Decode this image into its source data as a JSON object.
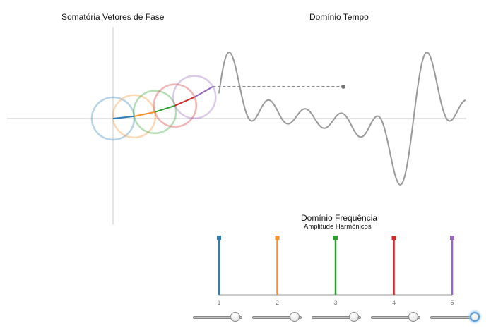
{
  "titles": {
    "phasor": "Somatória Vetores de Fase",
    "time": "Domínio Tempo",
    "frequency": "Domínio Frequência",
    "frequency_sub": "Amplitude Harmônicos"
  },
  "colors": {
    "axis": "#c8c8c8",
    "wave": "#999999",
    "dashed": "#777777",
    "harmonics": [
      "#2f7eb5",
      "#f7912c",
      "#2ca02c",
      "#d62728",
      "#9467bd"
    ]
  },
  "chart_data": {
    "type": "bar",
    "title": "Domínio Frequência",
    "subtitle": "Amplitude Harmônicos",
    "categories": [
      "1",
      "2",
      "3",
      "4",
      "5"
    ],
    "values": [
      1,
      1,
      1,
      1,
      1
    ],
    "ylim": [
      0,
      1
    ]
  },
  "sliders": [
    {
      "name": "amplitude-1",
      "value": 0.85
    },
    {
      "name": "amplitude-2",
      "value": 0.85
    },
    {
      "name": "amplitude-3",
      "value": 0.85
    },
    {
      "name": "amplitude-4",
      "value": 0.85
    },
    {
      "name": "amplitude-5",
      "value": 0.9,
      "focused": true
    }
  ],
  "phase_ratio": 0.6
}
